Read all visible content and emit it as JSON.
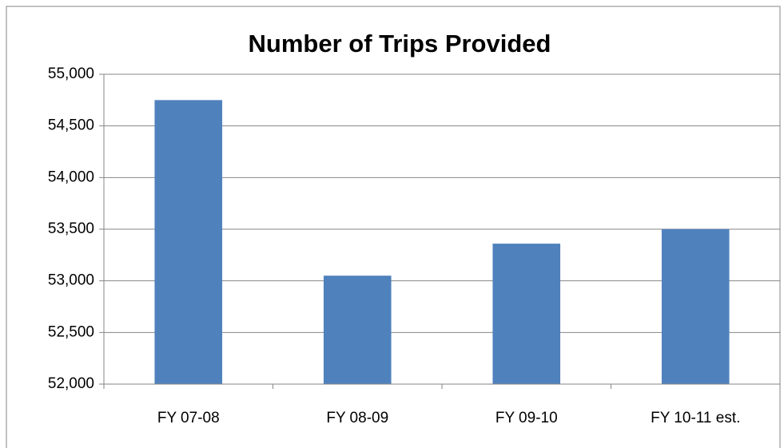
{
  "chart_data": {
    "type": "bar",
    "title": "Number of Trips Provided",
    "categories": [
      "FY 07-08",
      "FY 08-09",
      "FY 09-10",
      "FY 10-11 est."
    ],
    "values": [
      54750,
      53050,
      53360,
      53500
    ],
    "color": "#4f81bd",
    "ylim": [
      52000,
      55000
    ],
    "yticks": [
      {
        "value": 52000,
        "label": "52,000"
      },
      {
        "value": 52500,
        "label": "52,500"
      },
      {
        "value": 53000,
        "label": "53,000"
      },
      {
        "value": 53500,
        "label": "53,500"
      },
      {
        "value": 54000,
        "label": "54,000"
      },
      {
        "value": 54500,
        "label": "54,500"
      },
      {
        "value": 55000,
        "label": "55,000"
      }
    ],
    "grid": true
  }
}
